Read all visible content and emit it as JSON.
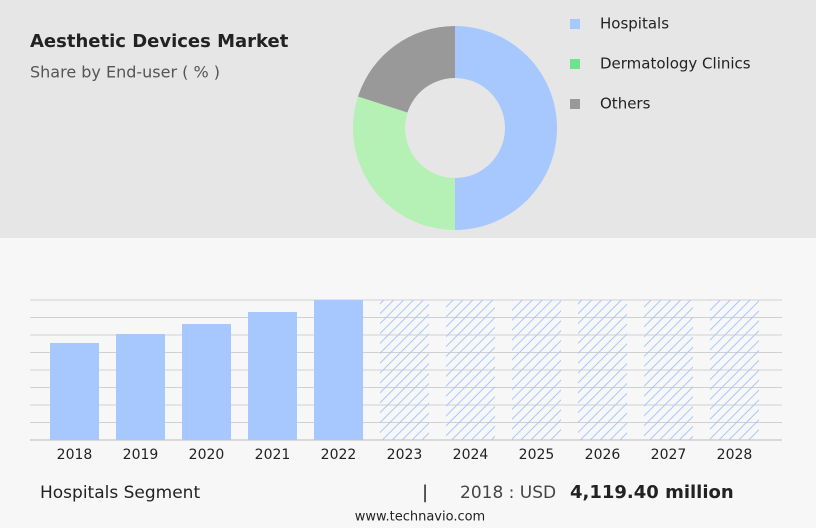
{
  "chart_data": [
    {
      "type": "pie",
      "title": "Aesthetic Devices Market",
      "subtitle": "Share by End-user ( % )",
      "categories": [
        "Hospitals",
        "Dermatology Clinics",
        "Others"
      ],
      "values": [
        50,
        30,
        20
      ],
      "colors": [
        "#a6c8ff",
        "#b5f0b5",
        "#999999"
      ],
      "legend_colors": [
        "#a6c8ff",
        "#6ee28c",
        "#999999"
      ],
      "donut": true
    },
    {
      "type": "bar",
      "categories": [
        "2018",
        "2019",
        "2020",
        "2021",
        "2022",
        "2023",
        "2024",
        "2025",
        "2026",
        "2027",
        "2028"
      ],
      "values": [
        4119.4,
        4502,
        4926,
        5436,
        5946,
        null,
        null,
        null,
        null,
        null,
        null
      ],
      "color": "#a6c8ff",
      "ylim": [
        0,
        5946
      ]
    }
  ],
  "footer": {
    "segment": "Hospitals Segment",
    "separator": "|",
    "year_label": "2018 : USD",
    "value": "4,119.40 million",
    "source": "www.technavio.com"
  }
}
